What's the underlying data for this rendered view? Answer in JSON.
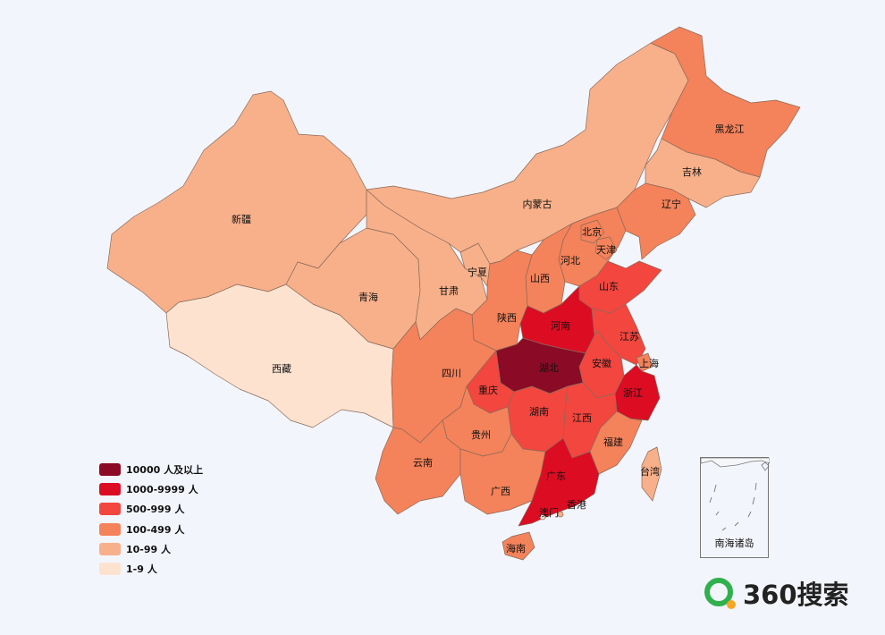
{
  "colors": {
    "bin_10000_plus": "#8b0a25",
    "bin_1000_9999": "#dc0c23",
    "bin_500_999": "#f2463f",
    "bin_100_499": "#f4825a",
    "bin_10_99": "#f7b08a",
    "bin_1_9": "#fde2d0",
    "background": "#f3f5fc",
    "brand_green": "#30b04e",
    "brand_orange": "#f5a623"
  },
  "legend": {
    "items": [
      {
        "label": "10000 人及以上",
        "color": "#8b0a25"
      },
      {
        "label": "1000-9999 人",
        "color": "#dc0c23"
      },
      {
        "label": "500-999 人",
        "color": "#f2463f"
      },
      {
        "label": "100-499 人",
        "color": "#f4825a"
      },
      {
        "label": "10-99 人",
        "color": "#f7b08a"
      },
      {
        "label": "1-9 人",
        "color": "#fde2d0"
      }
    ]
  },
  "provinces": [
    {
      "name": "新疆",
      "bin": "10-99 人"
    },
    {
      "name": "西藏",
      "bin": "1-9 人"
    },
    {
      "name": "青海",
      "bin": "10-99 人"
    },
    {
      "name": "甘肃",
      "bin": "10-99 人"
    },
    {
      "name": "宁夏",
      "bin": "10-99 人"
    },
    {
      "name": "内蒙古",
      "bin": "10-99 人"
    },
    {
      "name": "黑龙江",
      "bin": "100-499 人"
    },
    {
      "name": "吉林",
      "bin": "10-99 人"
    },
    {
      "name": "辽宁",
      "bin": "100-499 人"
    },
    {
      "name": "北京",
      "bin": "100-499 人"
    },
    {
      "name": "天津",
      "bin": "100-499 人"
    },
    {
      "name": "河北",
      "bin": "100-499 人"
    },
    {
      "name": "山西",
      "bin": "100-499 人"
    },
    {
      "name": "陕西",
      "bin": "100-499 人"
    },
    {
      "name": "山东",
      "bin": "500-999 人"
    },
    {
      "name": "河南",
      "bin": "1000-9999 人"
    },
    {
      "name": "江苏",
      "bin": "500-999 人"
    },
    {
      "name": "上海",
      "bin": "100-499 人"
    },
    {
      "name": "安徽",
      "bin": "500-999 人"
    },
    {
      "name": "湖北",
      "bin": "10000 人及以上"
    },
    {
      "name": "浙江",
      "bin": "1000-9999 人"
    },
    {
      "name": "四川",
      "bin": "100-499 人"
    },
    {
      "name": "重庆",
      "bin": "500-999 人"
    },
    {
      "name": "湖南",
      "bin": "500-999 人"
    },
    {
      "name": "江西",
      "bin": "500-999 人"
    },
    {
      "name": "贵州",
      "bin": "100-499 人"
    },
    {
      "name": "云南",
      "bin": "100-499 人"
    },
    {
      "name": "福建",
      "bin": "100-499 人"
    },
    {
      "name": "广西",
      "bin": "100-499 人"
    },
    {
      "name": "广东",
      "bin": "1000-9999 人"
    },
    {
      "name": "台湾",
      "bin": "10-99 人"
    },
    {
      "name": "澳门",
      "bin": "1-9 人"
    },
    {
      "name": "香港",
      "bin": "10-99 人"
    },
    {
      "name": "海南",
      "bin": "100-499 人"
    }
  ],
  "inset": {
    "label": "南海诸岛"
  },
  "brand": {
    "text": "360搜索",
    "logo_icon": "magnifier-logo-icon"
  }
}
